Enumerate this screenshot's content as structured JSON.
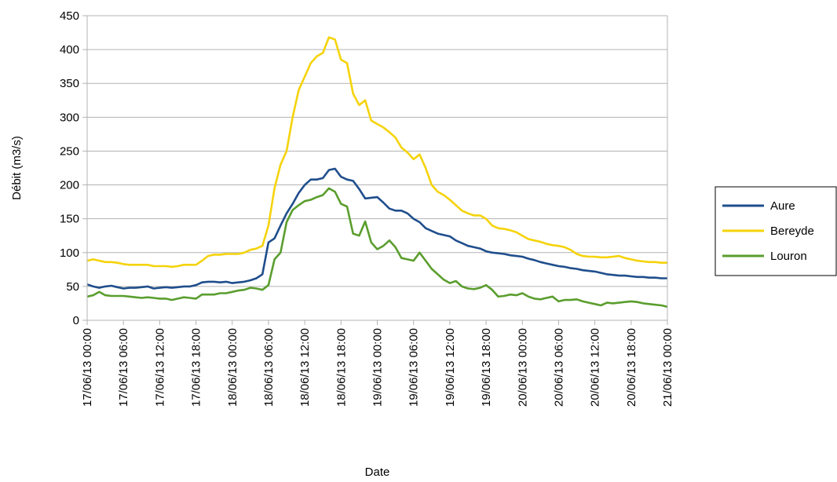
{
  "chart_data": {
    "type": "line",
    "title": "",
    "xlabel": "Date",
    "ylabel": "Débit (m3/s)",
    "ylim": [
      0,
      450
    ],
    "yticks": [
      0,
      50,
      100,
      150,
      200,
      250,
      300,
      350,
      400,
      450
    ],
    "xlim_hours": [
      0,
      96
    ],
    "x_tick_labels": [
      "17/06/13 00:00",
      "17/06/13 06:00",
      "17/06/13 12:00",
      "17/06/13 18:00",
      "18/06/13 00:00",
      "18/06/13 06:00",
      "18/06/13 12:00",
      "18/06/13 18:00",
      "19/06/13 00:00",
      "19/06/13 06:00",
      "19/06/13 12:00",
      "19/06/13 18:00",
      "20/06/13 00:00",
      "20/06/13 06:00",
      "20/06/13 12:00",
      "20/06/13 18:00",
      "21/06/13 00:00"
    ],
    "grid": "horizontal",
    "legend": "right",
    "x": [
      0,
      1,
      2,
      3,
      4,
      5,
      6,
      7,
      8,
      9,
      10,
      11,
      12,
      13,
      14,
      15,
      16,
      17,
      18,
      19,
      20,
      21,
      22,
      23,
      24,
      25,
      26,
      27,
      28,
      29,
      30,
      31,
      32,
      33,
      34,
      35,
      36,
      37,
      38,
      39,
      40,
      41,
      42,
      43,
      44,
      45,
      46,
      47,
      48,
      49,
      50,
      51,
      52,
      53,
      54,
      55,
      56,
      57,
      58,
      59,
      60,
      61,
      62,
      63,
      64,
      65,
      66,
      67,
      68,
      69,
      70,
      71,
      72,
      73,
      74,
      75,
      76,
      77,
      78,
      79,
      80,
      81,
      82,
      83,
      84,
      85,
      86,
      87,
      88,
      89,
      90,
      91,
      92,
      93,
      94,
      95,
      96
    ],
    "series": [
      {
        "name": "Aure",
        "color": "#1f4e8c",
        "values": [
          53,
          50,
          48,
          50,
          51,
          49,
          47,
          48,
          48,
          49,
          50,
          47,
          48,
          49,
          48,
          49,
          50,
          50,
          52,
          56,
          57,
          57,
          56,
          57,
          55,
          56,
          57,
          59,
          62,
          68,
          115,
          121,
          140,
          158,
          172,
          188,
          200,
          208,
          208,
          210,
          222,
          224,
          212,
          208,
          206,
          194,
          180,
          181,
          182,
          174,
          165,
          162,
          162,
          158,
          150,
          145,
          136,
          132,
          128,
          126,
          124,
          118,
          114,
          110,
          108,
          106,
          102,
          100,
          99,
          98,
          96,
          95,
          94,
          91,
          89,
          86,
          84,
          82,
          80,
          79,
          77,
          76,
          74,
          73,
          72,
          70,
          68,
          67,
          66,
          66,
          65,
          64,
          64,
          63,
          63,
          62,
          62
        ]
      },
      {
        "name": "Bereyde",
        "color": "#f5d30a",
        "values": [
          88,
          90,
          88,
          86,
          86,
          85,
          83,
          82,
          82,
          82,
          82,
          80,
          80,
          80,
          79,
          80,
          82,
          82,
          82,
          88,
          95,
          97,
          97,
          98,
          98,
          98,
          100,
          104,
          106,
          110,
          140,
          195,
          230,
          250,
          300,
          340,
          360,
          380,
          390,
          395,
          418,
          415,
          385,
          380,
          335,
          318,
          325,
          295,
          290,
          285,
          278,
          270,
          255,
          248,
          238,
          245,
          225,
          200,
          190,
          185,
          178,
          170,
          162,
          158,
          155,
          155,
          150,
          140,
          136,
          135,
          133,
          130,
          125,
          120,
          118,
          116,
          113,
          111,
          110,
          108,
          104,
          98,
          95,
          94,
          94,
          93,
          93,
          94,
          95,
          92,
          90,
          88,
          87,
          86,
          86,
          85,
          85
        ]
      },
      {
        "name": "Louron",
        "color": "#5a9e2e",
        "values": [
          35,
          37,
          42,
          37,
          36,
          36,
          36,
          35,
          34,
          33,
          34,
          33,
          32,
          32,
          30,
          32,
          34,
          33,
          32,
          38,
          38,
          38,
          40,
          40,
          42,
          44,
          45,
          48,
          47,
          45,
          52,
          90,
          100,
          145,
          163,
          170,
          176,
          178,
          182,
          185,
          195,
          190,
          172,
          168,
          128,
          125,
          146,
          115,
          105,
          110,
          118,
          108,
          92,
          90,
          88,
          100,
          88,
          76,
          68,
          60,
          55,
          58,
          50,
          47,
          46,
          48,
          52,
          45,
          35,
          36,
          38,
          37,
          40,
          35,
          32,
          31,
          33,
          35,
          28,
          30,
          30,
          31,
          28,
          26,
          24,
          22,
          26,
          25,
          26,
          27,
          28,
          27,
          25,
          24,
          23,
          22,
          20
        ]
      }
    ]
  }
}
